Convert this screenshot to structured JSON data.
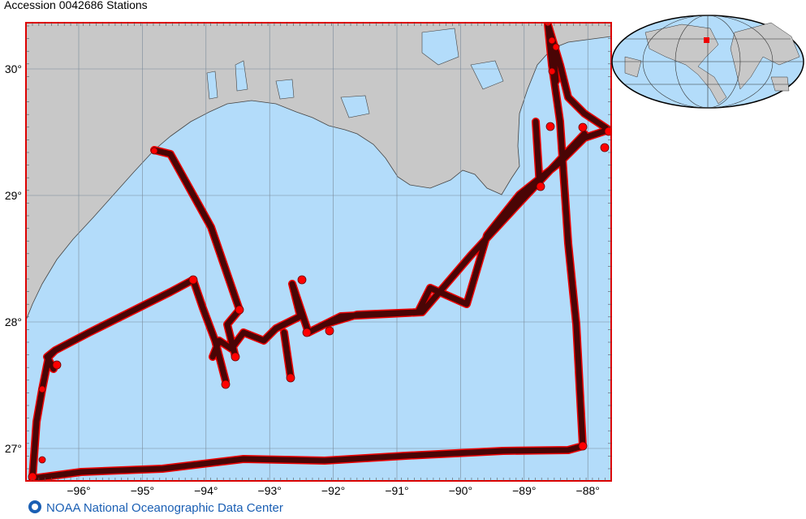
{
  "title": "Accession 0042686 Stations",
  "latitude_labels": [
    "30°",
    "29°",
    "28°",
    "27°"
  ],
  "longitude_labels": [
    "−96°",
    "−95°",
    "−94°",
    "−93°",
    "−92°",
    "−91°",
    "−90°",
    "−89°",
    "−88°"
  ],
  "footer": "NOAA National Oceanographic Data Center"
}
